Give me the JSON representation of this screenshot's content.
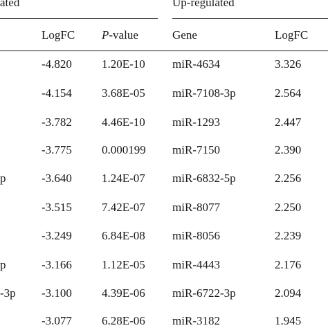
{
  "group_headers": {
    "down": "ated",
    "up": "Up-regulated"
  },
  "columns": {
    "down_gene": "",
    "down_logfc": "LogFC",
    "down_pvalue_italic": "P",
    "down_pvalue_rest": "-value",
    "up_gene": "Gene",
    "up_logfc": "LogFC"
  },
  "rows": [
    {
      "down_gene": "",
      "down_logfc": "-4.820",
      "down_pvalue": "1.20E-10",
      "up_gene": "miR-4634",
      "up_logfc": "3.326"
    },
    {
      "down_gene": "",
      "down_logfc": "-4.154",
      "down_pvalue": "3.68E-05",
      "up_gene": "miR-7108-3p",
      "up_logfc": "2.564"
    },
    {
      "down_gene": "",
      "down_logfc": "-3.782",
      "down_pvalue": "4.46E-10",
      "up_gene": "miR-1293",
      "up_logfc": "2.447"
    },
    {
      "down_gene": "",
      "down_logfc": "-3.775",
      "down_pvalue": "0.000199",
      "up_gene": "miR-7150",
      "up_logfc": "2.390"
    },
    {
      "down_gene": "p",
      "down_logfc": "-3.640",
      "down_pvalue": "1.24E-07",
      "up_gene": "miR-6832-5p",
      "up_logfc": "2.256"
    },
    {
      "down_gene": "",
      "down_logfc": "-3.515",
      "down_pvalue": "7.42E-07",
      "up_gene": "miR-8077",
      "up_logfc": "2.250"
    },
    {
      "down_gene": "",
      "down_logfc": "-3.249",
      "down_pvalue": "6.84E-08",
      "up_gene": "miR-8056",
      "up_logfc": "2.239"
    },
    {
      "down_gene": "p",
      "down_logfc": "-3.166",
      "down_pvalue": "1.12E-05",
      "up_gene": "miR-4443",
      "up_logfc": "2.176"
    },
    {
      "down_gene": "-3p",
      "down_logfc": "-3.100",
      "down_pvalue": "4.39E-06",
      "up_gene": "miR-6722-3p",
      "up_logfc": "2.094"
    },
    {
      "down_gene": "",
      "down_logfc": "-3.077",
      "down_pvalue": "6.28E-06",
      "up_gene": "miR-3182",
      "up_logfc": "1.945"
    }
  ]
}
